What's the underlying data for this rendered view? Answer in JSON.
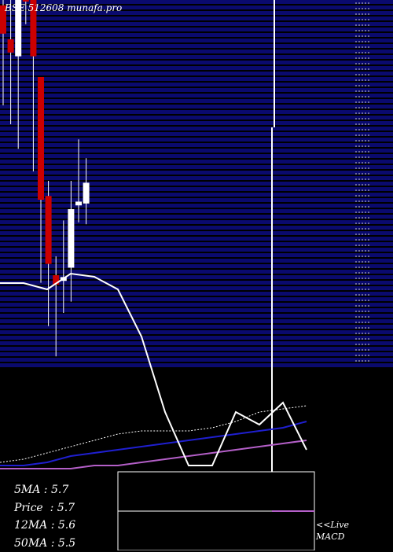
{
  "header": {
    "title": "BSE 512608  munafa.pro"
  },
  "stats": [
    {
      "label": "5MA",
      "value": "5.7"
    },
    {
      "label": "Price",
      "value": "5.7"
    },
    {
      "label": "12MA",
      "value": "5.6"
    },
    {
      "label": "50MA",
      "value": "5.5"
    }
  ],
  "side_links": {
    "live": "<<Live",
    "macd": "MACD"
  },
  "colors": {
    "background": "#000000",
    "grid_band": "#0a0a6e",
    "bear_candle": "#cc0000",
    "bull_candle": "#ffffff",
    "price_line": "#ffffff",
    "ma_blue": "#1f1fd0",
    "ma_magenta": "#b45fc8"
  },
  "chart_data": {
    "type": "candlestick",
    "candles": [
      {
        "open": 5.93,
        "high": 6.35,
        "low": 5.4,
        "close": 5.78
      },
      {
        "open": 5.75,
        "high": 6.0,
        "low": 5.3,
        "close": 5.68
      },
      {
        "open": 5.66,
        "high": 6.5,
        "low": 5.17,
        "close": 6.03
      },
      {
        "open": 6.08,
        "high": 6.58,
        "low": 5.83,
        "close": 5.95
      },
      {
        "open": 6.0,
        "high": 6.0,
        "low": 5.05,
        "close": 5.66
      },
      {
        "open": 5.55,
        "high": 5.55,
        "low": 4.46,
        "close": 4.9
      },
      {
        "open": 4.92,
        "high": 5.0,
        "low": 4.23,
        "close": 4.56
      },
      {
        "open": 4.5,
        "high": 4.6,
        "low": 4.07,
        "close": 4.45
      },
      {
        "open": 4.47,
        "high": 4.79,
        "low": 4.3,
        "close": 4.49
      },
      {
        "open": 4.54,
        "high": 5.0,
        "low": 4.36,
        "close": 4.85
      },
      {
        "open": 4.87,
        "high": 5.22,
        "low": 4.78,
        "close": 4.89
      },
      {
        "open": 4.88,
        "high": 5.12,
        "low": 4.77,
        "close": 4.99
      }
    ],
    "price_line": [
      5.55,
      5.55,
      5.53,
      5.58,
      5.57,
      5.53,
      5.38,
      5.14,
      4.97,
      4.97,
      5.14,
      5.1,
      5.17,
      5.02
    ],
    "ma_blue": [
      4.97,
      4.97,
      4.98,
      5.0,
      5.01,
      5.02,
      5.03,
      5.04,
      5.05,
      5.06,
      5.07,
      5.08,
      5.09,
      5.11
    ],
    "ma_magenta": [
      4.96,
      4.96,
      4.96,
      4.96,
      4.97,
      4.97,
      4.98,
      4.99,
      5.0,
      5.01,
      5.02,
      5.03,
      5.04,
      5.05
    ],
    "ma_dotted": [
      4.98,
      4.99,
      5.01,
      5.03,
      5.05,
      5.07,
      5.08,
      5.08,
      5.08,
      5.09,
      5.11,
      5.14,
      5.15,
      5.16
    ]
  }
}
